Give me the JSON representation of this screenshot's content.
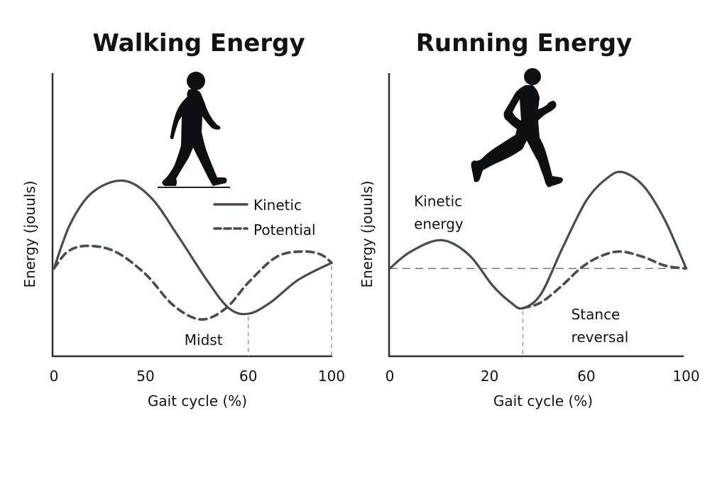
{
  "chart_data": [
    {
      "type": "line",
      "title": "Walking Energy",
      "xlabel": "Gait cycle (%)",
      "ylabel": "Energy (jouuls)",
      "x_ticks": [
        {
          "label": "0",
          "pos": 0.0
        },
        {
          "label": "50",
          "pos": 0.33
        },
        {
          "label": "60",
          "pos": 0.7
        },
        {
          "label": "100",
          "pos": 1.0
        }
      ],
      "x_domain": "gait position fraction along axis (0 = start, 1 = end)",
      "y_domain": "relative energy, 0 = axis bottom, 1 = axis top (no y ticks shown)",
      "legend": {
        "placement": "upper-right",
        "entries": [
          {
            "name": "Kinetic",
            "style": "solid"
          },
          {
            "name": "Potential",
            "style": "dashed"
          }
        ]
      },
      "series": [
        {
          "name": "Kinetic",
          "style": "solid",
          "points": [
            [
              0.0,
              0.31
            ],
            [
              0.06,
              0.47
            ],
            [
              0.14,
              0.58
            ],
            [
              0.25,
              0.62
            ],
            [
              0.35,
              0.56
            ],
            [
              0.45,
              0.42
            ],
            [
              0.55,
              0.27
            ],
            [
              0.63,
              0.17
            ],
            [
              0.7,
              0.15
            ],
            [
              0.78,
              0.19
            ],
            [
              0.88,
              0.27
            ],
            [
              1.0,
              0.33
            ]
          ]
        },
        {
          "name": "Potential",
          "style": "dashed",
          "points": [
            [
              0.0,
              0.31
            ],
            [
              0.05,
              0.37
            ],
            [
              0.12,
              0.39
            ],
            [
              0.22,
              0.37
            ],
            [
              0.33,
              0.29
            ],
            [
              0.43,
              0.18
            ],
            [
              0.53,
              0.13
            ],
            [
              0.62,
              0.17
            ],
            [
              0.7,
              0.26
            ],
            [
              0.8,
              0.35
            ],
            [
              0.89,
              0.37
            ],
            [
              0.96,
              0.36
            ],
            [
              1.0,
              0.33
            ]
          ]
        }
      ],
      "reference_lines": [
        {
          "type": "vertical",
          "pos": 0.7,
          "style": "dashed"
        },
        {
          "type": "vertical",
          "pos": 1.0,
          "style": "dashed"
        }
      ],
      "annotations": [
        {
          "text": "Midst",
          "x": 0.47,
          "y": 0.04
        }
      ]
    },
    {
      "type": "line",
      "title": "Running Energy",
      "xlabel": "Gait cycle (%)",
      "ylabel": "Energy (jouuls)",
      "x_ticks": [
        {
          "label": "0",
          "pos": 0.0
        },
        {
          "label": "20",
          "pos": 0.33
        },
        {
          "label": "60",
          "pos": 0.65
        },
        {
          "label": "100",
          "pos": 0.98
        }
      ],
      "x_domain": "gait position fraction along axis (0 = start, 1 = end)",
      "y_domain": "relative energy, 0 = axis bottom, 1 = axis top (no y ticks shown)",
      "series": [
        {
          "name": "Kinetic energy",
          "style": "solid",
          "points": [
            [
              0.0,
              0.31
            ],
            [
              0.07,
              0.37
            ],
            [
              0.17,
              0.41
            ],
            [
              0.26,
              0.36
            ],
            [
              0.34,
              0.25
            ],
            [
              0.4,
              0.19
            ],
            [
              0.44,
              0.17
            ],
            [
              0.5,
              0.22
            ],
            [
              0.57,
              0.38
            ],
            [
              0.65,
              0.55
            ],
            [
              0.72,
              0.63
            ],
            [
              0.77,
              0.65
            ],
            [
              0.84,
              0.6
            ],
            [
              0.91,
              0.48
            ],
            [
              0.98,
              0.31
            ]
          ]
        },
        {
          "name": "Potential",
          "style": "dashed",
          "points": [
            [
              0.44,
              0.17
            ],
            [
              0.5,
              0.19
            ],
            [
              0.57,
              0.25
            ],
            [
              0.63,
              0.31
            ],
            [
              0.69,
              0.35
            ],
            [
              0.76,
              0.37
            ],
            [
              0.84,
              0.35
            ],
            [
              0.91,
              0.32
            ],
            [
              0.98,
              0.31
            ]
          ]
        }
      ],
      "reference_lines": [
        {
          "type": "horizontal",
          "value": 0.31,
          "style": "dashed"
        },
        {
          "type": "vertical",
          "pos": 0.44,
          "style": "dashed"
        }
      ],
      "annotations": [
        {
          "text": "Kinetic",
          "x": 0.08,
          "y": 0.53
        },
        {
          "text": "energy",
          "x": 0.08,
          "y": 0.45
        },
        {
          "text": "Stance",
          "x": 0.6,
          "y": 0.13
        },
        {
          "text": "reversal",
          "x": 0.6,
          "y": 0.05
        }
      ]
    }
  ],
  "figures": {
    "walking_icon": "walking-person-icon",
    "running_icon": "running-person-icon"
  },
  "colors": {
    "curve": "#454c52",
    "axis": "#2a2f35",
    "text": "#111318",
    "guide": "#8a8f94"
  }
}
